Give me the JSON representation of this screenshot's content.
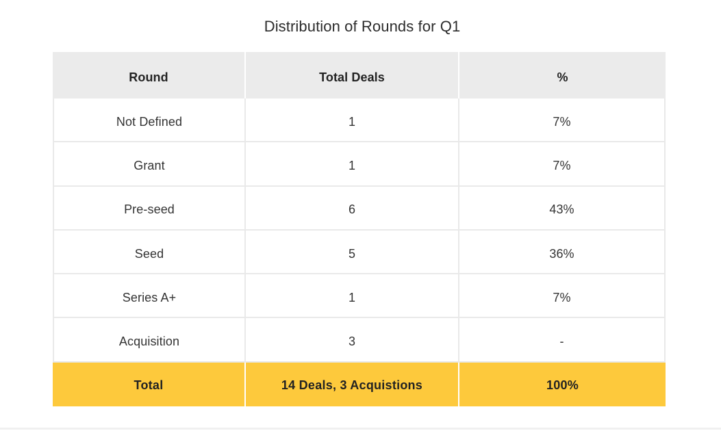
{
  "title": "Distribution of Rounds for Q1",
  "chart_data": {
    "type": "table",
    "title": "Distribution of Rounds for Q1",
    "columns": [
      "Round",
      "Total Deals",
      "%"
    ],
    "rows": [
      [
        "Not Defined",
        1,
        "7%"
      ],
      [
        "Grant",
        1,
        "7%"
      ],
      [
        "Pre-seed",
        6,
        "43%"
      ],
      [
        "Seed",
        5,
        "36%"
      ],
      [
        "Series A+",
        1,
        "7%"
      ],
      [
        "Acquisition",
        3,
        "-"
      ]
    ],
    "total_row": [
      "Total",
      "14 Deals, 3 Acquistions",
      "100%"
    ]
  },
  "table": {
    "headers": {
      "round": "Round",
      "total_deals": "Total Deals",
      "percent": "%"
    },
    "rows": [
      {
        "round": "Not Defined",
        "total_deals": "1",
        "percent": "7%"
      },
      {
        "round": "Grant",
        "total_deals": "1",
        "percent": "7%"
      },
      {
        "round": "Pre-seed",
        "total_deals": "6",
        "percent": "43%"
      },
      {
        "round": "Seed",
        "total_deals": "5",
        "percent": "36%"
      },
      {
        "round": "Series A+",
        "total_deals": "1",
        "percent": "7%"
      },
      {
        "round": "Acquisition",
        "total_deals": "3",
        "percent": "-"
      }
    ],
    "total_row": {
      "round": "Total",
      "total_deals": "14 Deals, 3 Acquistions",
      "percent": "100%"
    }
  },
  "colors": {
    "header_bg": "#ebebeb",
    "total_bg": "#fdc93c",
    "row_border": "#e9e9e9",
    "divider": "#f0f0f0"
  }
}
